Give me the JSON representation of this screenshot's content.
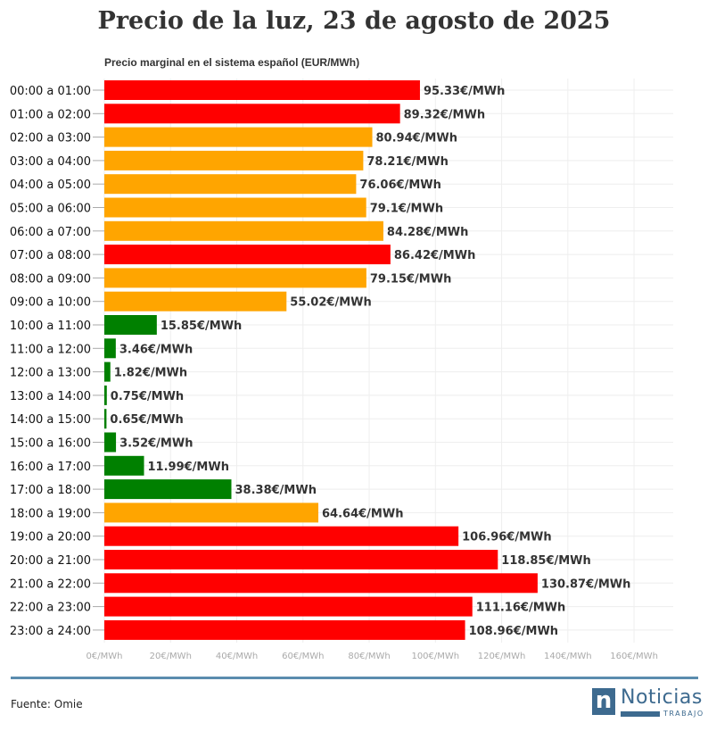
{
  "chart_data": {
    "type": "bar",
    "orientation": "horizontal",
    "title": "Precio de la luz, 23 de agosto de 2025",
    "subtitle": "Precio marginal en el sistema español (EUR/MWh)",
    "categories": [
      "00:00 a 01:00",
      "01:00 a 02:00",
      "02:00 a 03:00",
      "03:00 a 04:00",
      "04:00 a 05:00",
      "05:00 a 06:00",
      "06:00 a 07:00",
      "07:00 a 08:00",
      "08:00 a 09:00",
      "09:00 a 10:00",
      "10:00 a 11:00",
      "11:00 a 12:00",
      "12:00 a 13:00",
      "13:00 a 14:00",
      "14:00 a 15:00",
      "15:00 a 16:00",
      "16:00 a 17:00",
      "17:00 a 18:00",
      "18:00 a 19:00",
      "19:00 a 20:00",
      "20:00 a 21:00",
      "21:00 a 22:00",
      "22:00 a 23:00",
      "23:00 a 24:00"
    ],
    "values": [
      95.33,
      89.32,
      80.94,
      78.21,
      76.06,
      79.1,
      84.28,
      86.42,
      79.15,
      55.02,
      15.85,
      3.46,
      1.82,
      0.75,
      0.65,
      3.52,
      11.99,
      38.38,
      64.64,
      106.96,
      118.85,
      130.87,
      111.16,
      108.96
    ],
    "data_labels": [
      "95.33€/MWh",
      "89.32€/MWh",
      "80.94€/MWh",
      "78.21€/MWh",
      "76.06€/MWh",
      "79.1€/MWh",
      "84.28€/MWh",
      "86.42€/MWh",
      "79.15€/MWh",
      "55.02€/MWh",
      "15.85€/MWh",
      "3.46€/MWh",
      "1.82€/MWh",
      "0.75€/MWh",
      "0.65€/MWh",
      "3.52€/MWh",
      "11.99€/MWh",
      "38.38€/MWh",
      "64.64€/MWh",
      "106.96€/MWh",
      "118.85€/MWh",
      "130.87€/MWh",
      "111.16€/MWh",
      "108.96€/MWh"
    ],
    "bar_colors": [
      "#ff0000",
      "#ff0000",
      "#ffa500",
      "#ffa500",
      "#ffa500",
      "#ffa500",
      "#ffa500",
      "#ff0000",
      "#ffa500",
      "#ffa500",
      "#008000",
      "#008000",
      "#008000",
      "#008000",
      "#008000",
      "#008000",
      "#008000",
      "#008000",
      "#ffa500",
      "#ff0000",
      "#ff0000",
      "#ff0000",
      "#ff0000",
      "#ff0000"
    ],
    "xlim": [
      0,
      170
    ],
    "x_ticks": [
      0,
      20,
      40,
      60,
      80,
      100,
      120,
      140,
      160
    ],
    "x_tick_labels": [
      "0€/MWh",
      "20€/MWh",
      "40€/MWh",
      "60€/MWh",
      "80€/MWh",
      "100€/MWh",
      "120€/MWh",
      "140€/MWh",
      "160€/MWh"
    ],
    "grid": true
  },
  "footer": {
    "source": "Fuente: Omie"
  },
  "logo": {
    "letter": "n",
    "name": "Noticias",
    "sub": "TRABAJO"
  }
}
